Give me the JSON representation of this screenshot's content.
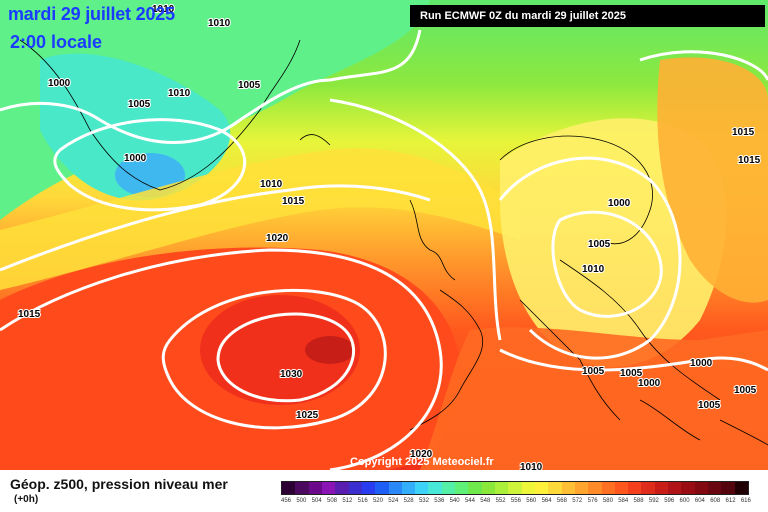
{
  "header": {
    "date": "mardi 29 juillet 2025",
    "time": "2:00 locale",
    "run": "Run ECMWF 0Z du mardi 29 juillet 2025"
  },
  "copyright": "Copyright 2025 Meteociel.fr",
  "footer": {
    "product": "Géop. z500, pression niveau mer",
    "offset": "(+0h)"
  },
  "isobars": [
    {
      "text": "1010"
    },
    {
      "text": "1010"
    },
    {
      "text": "1000"
    },
    {
      "text": "1005"
    },
    {
      "text": "1010"
    },
    {
      "text": "1005"
    },
    {
      "text": "1000"
    },
    {
      "text": "1010"
    },
    {
      "text": "1015"
    },
    {
      "text": "1020"
    },
    {
      "text": "1015"
    },
    {
      "text": "1030"
    },
    {
      "text": "1025"
    },
    {
      "text": "1020"
    },
    {
      "text": "1015"
    },
    {
      "text": "1015"
    },
    {
      "text": "1000"
    },
    {
      "text": "1005"
    },
    {
      "text": "1010"
    },
    {
      "text": "1005"
    },
    {
      "text": "1005"
    },
    {
      "text": "1000"
    },
    {
      "text": "1000"
    },
    {
      "text": "1005"
    },
    {
      "text": "1005"
    },
    {
      "text": "1010"
    }
  ],
  "colors": {
    "scale": [
      "#2d0033",
      "#4b0a5e",
      "#6a0a8a",
      "#8a14b4",
      "#5a1fb0",
      "#3b2fd0",
      "#2a3cf0",
      "#1e60f5",
      "#2a88f8",
      "#33aefa",
      "#3dd3f8",
      "#48e8d8",
      "#55f0a8",
      "#5ff078",
      "#6ee84a",
      "#8ae83a",
      "#aaef3a",
      "#cdf43a",
      "#eef63a",
      "#fff03c",
      "#ffd83a",
      "#ffbf34",
      "#ffa52e",
      "#ff8a28",
      "#ff6f22",
      "#ff561e",
      "#f4401c",
      "#e02c1a",
      "#c91e18",
      "#b11416",
      "#990c14",
      "#820812",
      "#6a0610",
      "#54040c",
      "#200004"
    ],
    "scale_labels": [
      "456",
      "500",
      "504",
      "508",
      "512",
      "516",
      "520",
      "524",
      "528",
      "532",
      "536",
      "540",
      "544",
      "548",
      "552",
      "556",
      "560",
      "564",
      "568",
      "572",
      "576",
      "580",
      "584",
      "588",
      "592",
      "596",
      "600",
      "604",
      "608",
      "612",
      "616"
    ]
  }
}
